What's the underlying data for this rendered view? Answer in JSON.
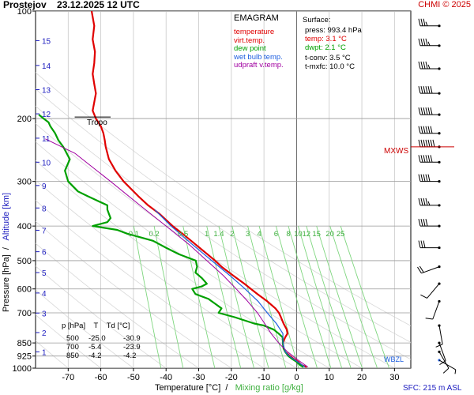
{
  "header": {
    "station": "Prostejov",
    "datetime": "23.12.2025 12 UTC",
    "credit": "CHMI © 2025"
  },
  "legend": {
    "title": "EMAGRAM",
    "items": [
      {
        "label": "temperature",
        "color": "#e00000"
      },
      {
        "label": "virt.temp.",
        "color": "#e00000"
      },
      {
        "label": "dew point",
        "color": "#00a000"
      },
      {
        "label": "wet bulb temp.",
        "color": "#2060e0"
      },
      {
        "label": "udpraft v.temp.",
        "color": "#a000a0"
      }
    ]
  },
  "surface": {
    "title": "Surface:",
    "press": "press: 993.4 hPa",
    "temp": "temp: 3.1 °C",
    "dwpt": "dwpt: 2.1 °C",
    "tconv": "t-conv: 3.5 °C",
    "tmxfc": "t-mxfc: 10.0 °C"
  },
  "levels_table": {
    "headers": [
      "p [hPa]",
      "T",
      "Td [°C]"
    ],
    "rows": [
      [
        "500",
        "-25.0",
        "-30.9"
      ],
      [
        "700",
        "-5.4",
        "-23.9"
      ],
      [
        "850",
        "-4.2",
        "-4.2"
      ]
    ]
  },
  "annotations": {
    "tropo": "Tropo",
    "mxws": "MXWS",
    "wbzl": "WBZL",
    "sfc": "SFC: 215 m ASL"
  },
  "colors": {
    "temperature": "#e00000",
    "dewpoint": "#00a000",
    "wetbulb": "#2060e0",
    "updraft": "#a000a0",
    "mixing": "#7fd67f",
    "isotherm": "#c8c8c8",
    "altitude": "#2020c0",
    "wind": "#000000"
  },
  "chart_data": {
    "type": "line",
    "title": "EMAGRAM",
    "xlabel": "Temperature [°C]",
    "xlabel_extra": "Mixing ratio [g/kg]",
    "ylabel": "Pressure [hPa]",
    "ylabel_extra": "Altitude [km]",
    "xlim": [
      -80,
      35
    ],
    "ylim": [
      1000,
      100
    ],
    "y_scale": "log",
    "x_ticks": [
      -70,
      -60,
      -50,
      -40,
      -30,
      -20,
      -10,
      0,
      10,
      20,
      30
    ],
    "y_ticks": [
      100,
      200,
      300,
      400,
      500,
      600,
      700,
      850,
      925,
      1000
    ],
    "altitude_ticks": [
      {
        "km": 1,
        "p": 900
      },
      {
        "km": 2,
        "p": 795
      },
      {
        "km": 3,
        "p": 701
      },
      {
        "km": 4,
        "p": 616
      },
      {
        "km": 5,
        "p": 540
      },
      {
        "km": 6,
        "p": 472
      },
      {
        "km": 7,
        "p": 411
      },
      {
        "km": 8,
        "p": 356
      },
      {
        "km": 9,
        "p": 308
      },
      {
        "km": 10,
        "p": 265
      },
      {
        "km": 11,
        "p": 227
      },
      {
        "km": 12,
        "p": 194
      },
      {
        "km": 13,
        "p": 166
      },
      {
        "km": 14,
        "p": 142
      },
      {
        "km": 15,
        "p": 121
      }
    ],
    "mixing_ratio_labels": [
      "0.1",
      "0.2",
      "0.5",
      "1",
      "1.4",
      "2",
      "3",
      "4",
      "6",
      "8",
      "10",
      "12",
      "15",
      "20",
      "25"
    ],
    "mixing_ratio_values": [
      0.1,
      0.2,
      0.5,
      1,
      1.4,
      2,
      3,
      4,
      6,
      8,
      10,
      12,
      15,
      20,
      25
    ],
    "series": [
      {
        "name": "temperature",
        "p": [
          993,
          980,
          960,
          940,
          925,
          900,
          880,
          850,
          820,
          800,
          780,
          750,
          720,
          700,
          680,
          650,
          620,
          600,
          580,
          550,
          520,
          500,
          470,
          450,
          420,
          400,
          370,
          350,
          330,
          300,
          280,
          260,
          240,
          230,
          220,
          210,
          200,
          190,
          180,
          170,
          160,
          150,
          140,
          130,
          120,
          110,
          100
        ],
        "values": [
          3.1,
          1.5,
          0.5,
          -1.0,
          -2.0,
          -3.5,
          -4.0,
          -4.2,
          -3.5,
          -2.8,
          -3.0,
          -4.0,
          -4.8,
          -5.4,
          -6.5,
          -9.0,
          -12.0,
          -14.0,
          -16.0,
          -19.5,
          -23.0,
          -25.0,
          -28.5,
          -31.0,
          -35.0,
          -38.0,
          -42.0,
          -45.5,
          -48.5,
          -53.0,
          -55.5,
          -57.5,
          -58.5,
          -58.8,
          -59.2,
          -60.0,
          -61.5,
          -62.5,
          -62.0,
          -61.5,
          -62.0,
          -62.5,
          -62.0,
          -61.8,
          -62.5,
          -62.0,
          -62.8
        ]
      },
      {
        "name": "dew point",
        "p": [
          993,
          980,
          960,
          940,
          925,
          900,
          880,
          850,
          820,
          800,
          780,
          760,
          750,
          720,
          700,
          680,
          660,
          640,
          620,
          600,
          590,
          580,
          560,
          540,
          520,
          500,
          480,
          460,
          440,
          420,
          410,
          400,
          390,
          380,
          370,
          360,
          350,
          330,
          320,
          300,
          280,
          260,
          240,
          230,
          220,
          210,
          205,
          200,
          195
        ],
        "values": [
          2.1,
          1.0,
          0.0,
          -1.5,
          -2.5,
          -3.5,
          -4.0,
          -4.2,
          -4.3,
          -5.5,
          -7.0,
          -10.0,
          -13.0,
          -19.0,
          -23.9,
          -23.0,
          -25.0,
          -27.0,
          -31.0,
          -32.0,
          -29.0,
          -27.5,
          -29.0,
          -31.0,
          -30.5,
          -30.9,
          -36.0,
          -40.0,
          -44.0,
          -52.0,
          -55.0,
          -62.5,
          -58.0,
          -57.0,
          -57.5,
          -58.0,
          -58.0,
          -64.0,
          -67.0,
          -70.0,
          -71.0,
          -69.5,
          -71.5,
          -73.0,
          -74.0,
          -75.5,
          -76.0,
          -77.5,
          -79.0
        ]
      },
      {
        "name": "wet bulb temp.",
        "p": [
          993,
          960,
          925,
          900,
          850,
          800,
          750,
          700,
          650,
          600,
          550,
          500,
          450,
          400,
          360
        ],
        "values": [
          2.6,
          0.3,
          -2.2,
          -3.5,
          -4.2,
          -4.2,
          -6.2,
          -9.0,
          -11.8,
          -15.8,
          -20.5,
          -26.0,
          -32.0,
          -38.5,
          -43.5
        ]
      },
      {
        "name": "udpraft v.temp.",
        "p": [
          993,
          950,
          900,
          850,
          800,
          750,
          700,
          650,
          600,
          550,
          500,
          450,
          400,
          350,
          300,
          250,
          228
        ],
        "values": [
          3.5,
          0.5,
          -2.8,
          -5.5,
          -7.8,
          -9.8,
          -12.0,
          -15.0,
          -18.5,
          -22.5,
          -27.5,
          -33.0,
          -40.0,
          -48.0,
          -57.0,
          -68.0,
          -77.0
        ]
      }
    ]
  },
  "wind_barbs": [
    {
      "p": 110,
      "dir": 270,
      "kt": 35
    },
    {
      "p": 125,
      "dir": 270,
      "kt": 45
    },
    {
      "p": 145,
      "dir": 270,
      "kt": 45
    },
    {
      "p": 170,
      "dir": 270,
      "kt": 60
    },
    {
      "p": 195,
      "dir": 270,
      "kt": 60
    },
    {
      "p": 220,
      "dir": 270,
      "kt": 60
    },
    {
      "p": 240,
      "dir": 270,
      "kt": 70
    },
    {
      "p": 265,
      "dir": 270,
      "kt": 60
    },
    {
      "p": 300,
      "dir": 270,
      "kt": 50
    },
    {
      "p": 350,
      "dir": 270,
      "kt": 45
    },
    {
      "p": 400,
      "dir": 270,
      "kt": 40
    },
    {
      "p": 460,
      "dir": 270,
      "kt": 30
    },
    {
      "p": 520,
      "dir": 250,
      "kt": 20
    },
    {
      "p": 580,
      "dir": 220,
      "kt": 10
    },
    {
      "p": 650,
      "dir": 200,
      "kt": 10
    },
    {
      "p": 760,
      "dir": 170,
      "kt": 10
    },
    {
      "p": 850,
      "dir": 160,
      "kt": 10
    },
    {
      "p": 900,
      "dir": 150,
      "kt": 10
    },
    {
      "p": 950,
      "dir": 120,
      "kt": 5
    }
  ]
}
